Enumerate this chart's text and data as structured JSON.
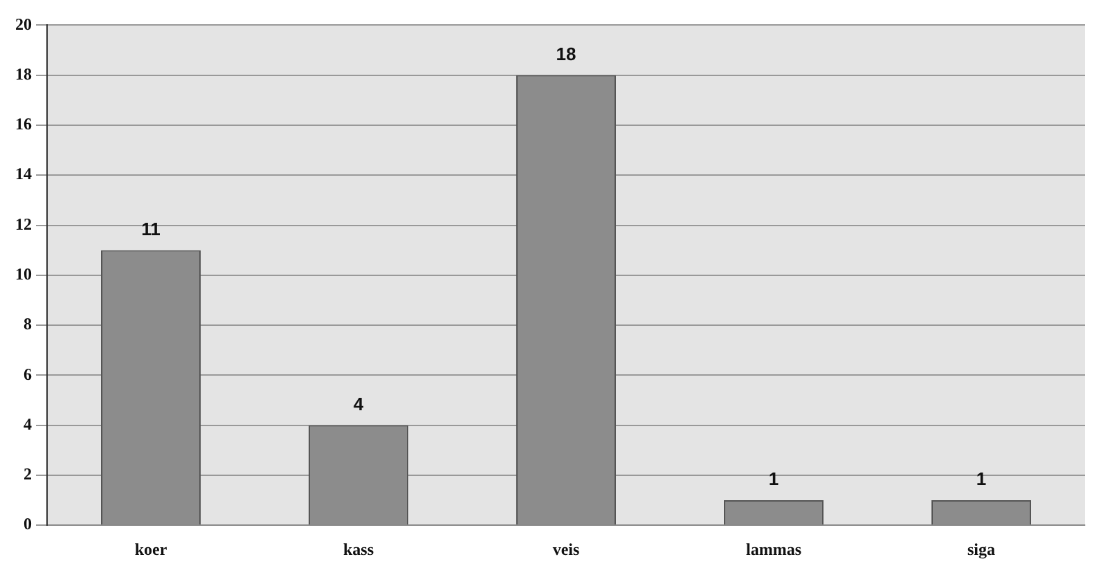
{
  "chart_data": {
    "type": "bar",
    "categories": [
      "koer",
      "kass",
      "veis",
      "lammas",
      "siga"
    ],
    "values": [
      11,
      4,
      18,
      1,
      1
    ],
    "color": "#8c8c8c",
    "ylim": [
      0,
      20
    ],
    "yticks": [
      0,
      2,
      4,
      6,
      8,
      10,
      12,
      14,
      16,
      18,
      20
    ],
    "grid": "y",
    "data_labels": true,
    "legend": false
  }
}
